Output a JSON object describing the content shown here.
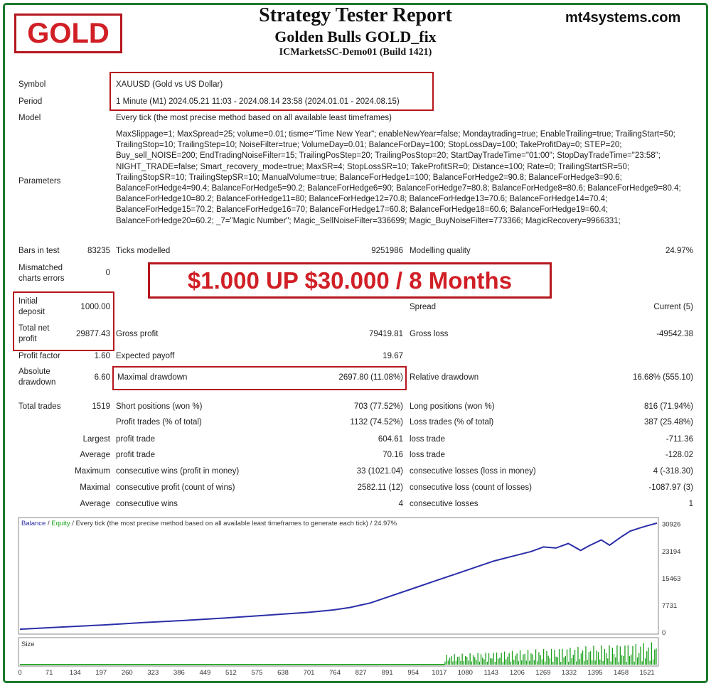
{
  "badge": "GOLD",
  "site": "mt4systems.com",
  "header": {
    "title": "Strategy Tester Report",
    "expert": "Golden Bulls GOLD_fix",
    "server": "ICMarketsSC-Demo01 (Build 1421)"
  },
  "headline": "$1.000 UP $30.000 / 8 Months",
  "info": {
    "symbol_label": "Symbol",
    "symbol": "XAUUSD (Gold vs US Dollar)",
    "period_label": "Period",
    "period": "1 Minute (M1) 2024.05.21 11:03 - 2024.08.14 23:58 (2024.01.01 - 2024.08.15)",
    "model_label": "Model",
    "model": "Every tick (the most precise method based on all available least timeframes)",
    "parameters_label": "Parameters",
    "parameters": "MaxSlippage=1; MaxSpread=25; volume=0.01; tisme=\"Time New Year\"; enableNewYear=false; Mondaytrading=true; EnableTrailing=true; TrailingStart=50; TrailingStop=10; TrailingStep=10; NoiseFilter=true; VolumeDay=0.01; BalanceForDay=100; StopLossDay=100; TakeProfitDay=0; STEP=20; Buy_sell_NOISE=200; EndTradingNoiseFilter=15; TrailingPosStep=20; TrailingPosStop=20; StartDayTradeTime=\"01:00\"; StopDayTradeTime=\"23:58\"; NIGHT_TRADE=false; Smart_recovery_mode=true; MaxSR=4; StopLossSR=10; TakeProfitSR=0; Distance=100; Rate=0; TrailingStartSR=50; TrailingStopSR=10; TrailingStepSR=10; ManualVolume=true; BalanceForHedge1=100; BalanceForHedge2=90.8; BalanceForHedge3=90.6; BalanceForHedge4=90.4; BalanceForHedge5=90.2; BalanceForHedge6=90; BalanceForHedge7=80.8; BalanceForHedge8=80.6; BalanceForHedge9=80.4; BalanceForHedge10=80.2; BalanceForHedge11=80; BalanceForHedge12=70.8; BalanceForHedge13=70.6; BalanceForHedge14=70.4; BalanceForHedge15=70.2; BalanceForHedge16=70; BalanceForHedge17=60.8; BalanceForHedge18=60.6; BalanceForHedge19=60.4; BalanceForHedge20=60.2; _7=\"Magic Number\"; Magic_SellNoiseFilter=336699; Magic_BuyNoiseFilter=773366; MagicRecovery=9966331;"
  },
  "stats": {
    "bars_label": "Bars in test",
    "bars": "83235",
    "ticks_label": "Ticks modelled",
    "ticks": "9251986",
    "quality_label": "Modelling quality",
    "quality": "24.97%",
    "mismatch_label1": "Mismatched",
    "mismatch_label2": "charts errors",
    "mismatch": "0",
    "deposit_label1": "Initial",
    "deposit_label2": "deposit",
    "deposit": "1000.00",
    "spread_label": "Spread",
    "spread": "Current (5)",
    "netprofit_label1": "Total net",
    "netprofit_label2": "profit",
    "netprofit": "29877.43",
    "gross_profit_label": "Gross profit",
    "gross_profit": "79419.81",
    "gross_loss_label": "Gross loss",
    "gross_loss": "-49542.38",
    "pf_label": "Profit factor",
    "pf": "1.60",
    "ep_label": "Expected payoff",
    "ep": "19.67",
    "absdd_label1": "Absolute",
    "absdd_label2": "drawdown",
    "absdd": "6.60",
    "maxdd_label": "Maximal drawdown",
    "maxdd": "2697.80 (11.08%)",
    "reldd_label": "Relative drawdown",
    "reldd": "16.68% (555.10)",
    "trades_label": "Total trades",
    "trades": "1519",
    "short_label": "Short positions (won %)",
    "short": "703 (77.52%)",
    "long_label": "Long positions (won %)",
    "long": "816 (71.94%)",
    "ptrades_label": "Profit trades (% of total)",
    "ptrades": "1132 (74.52%)",
    "ltrades_label": "Loss trades (% of total)",
    "ltrades": "387 (25.48%)",
    "largest_label": "Largest",
    "lp_label": "profit trade",
    "lp": "604.61",
    "ll_label": "loss trade",
    "ll": "-711.36",
    "average_label": "Average",
    "ap_label": "profit trade",
    "ap": "70.16",
    "al_label": "loss trade",
    "al": "-128.02",
    "maximum_label": "Maximum",
    "mcw_label": "consecutive wins (profit in money)",
    "mcw": "33 (1021.04)",
    "mcl_label": "consecutive losses (loss in money)",
    "mcl": "4 (-318.30)",
    "maximal_label": "Maximal",
    "mcp_label": "consecutive profit (count of wins)",
    "mcp": "2582.11 (12)",
    "mcls_label": "consecutive loss (count of losses)",
    "mcls": "-1087.97 (3)",
    "average2_label": "Average",
    "acw_label": "consecutive wins",
    "acw": "4",
    "acl_label": "consecutive losses",
    "acl": "1"
  },
  "chart_data": {
    "type": "line",
    "legend_balance": "Balance",
    "legend_sep": " / ",
    "legend_equity": "Equity",
    "legend_rest": " / Every tick (the most precise method based on all available least timeframes to generate each tick) / 24.97%",
    "volume_label": "Size",
    "y_ticks": [
      "30926",
      "23194",
      "15463",
      "7731",
      "0"
    ],
    "y_values": [
      30926,
      23194,
      15463,
      7731,
      0
    ],
    "x_ticks": [
      "0",
      "71",
      "134",
      "197",
      "260",
      "323",
      "386",
      "449",
      "512",
      "575",
      "638",
      "701",
      "764",
      "827",
      "891",
      "954",
      "1017",
      "1080",
      "1143",
      "1206",
      "1269",
      "1332",
      "1395",
      "1458",
      "1521"
    ],
    "xlim": [
      0,
      1545
    ],
    "ylim": [
      0,
      32500
    ],
    "series": [
      {
        "x": [
          0,
          100,
          200,
          300,
          400,
          500,
          600,
          700,
          760,
          800,
          850,
          900,
          950,
          1000,
          1050,
          1100,
          1150,
          1200,
          1240,
          1270,
          1300,
          1330,
          1360,
          1380,
          1410,
          1430,
          1460,
          1480,
          1500,
          1520,
          1545
        ],
        "values": [
          1000,
          1600,
          2200,
          2900,
          3500,
          4200,
          5000,
          5800,
          6500,
          7200,
          8500,
          10500,
          12500,
          14500,
          16500,
          18500,
          20500,
          22000,
          23200,
          24500,
          24200,
          25500,
          23500,
          24800,
          26500,
          25000,
          27500,
          29000,
          29800,
          30500,
          31300
        ]
      }
    ],
    "volume": {
      "x_start": 1030,
      "x_end": 1545
    },
    "colors": {
      "balance": "#2b2fa8",
      "equity": "#1aa31a",
      "volume": "#19a019"
    }
  }
}
